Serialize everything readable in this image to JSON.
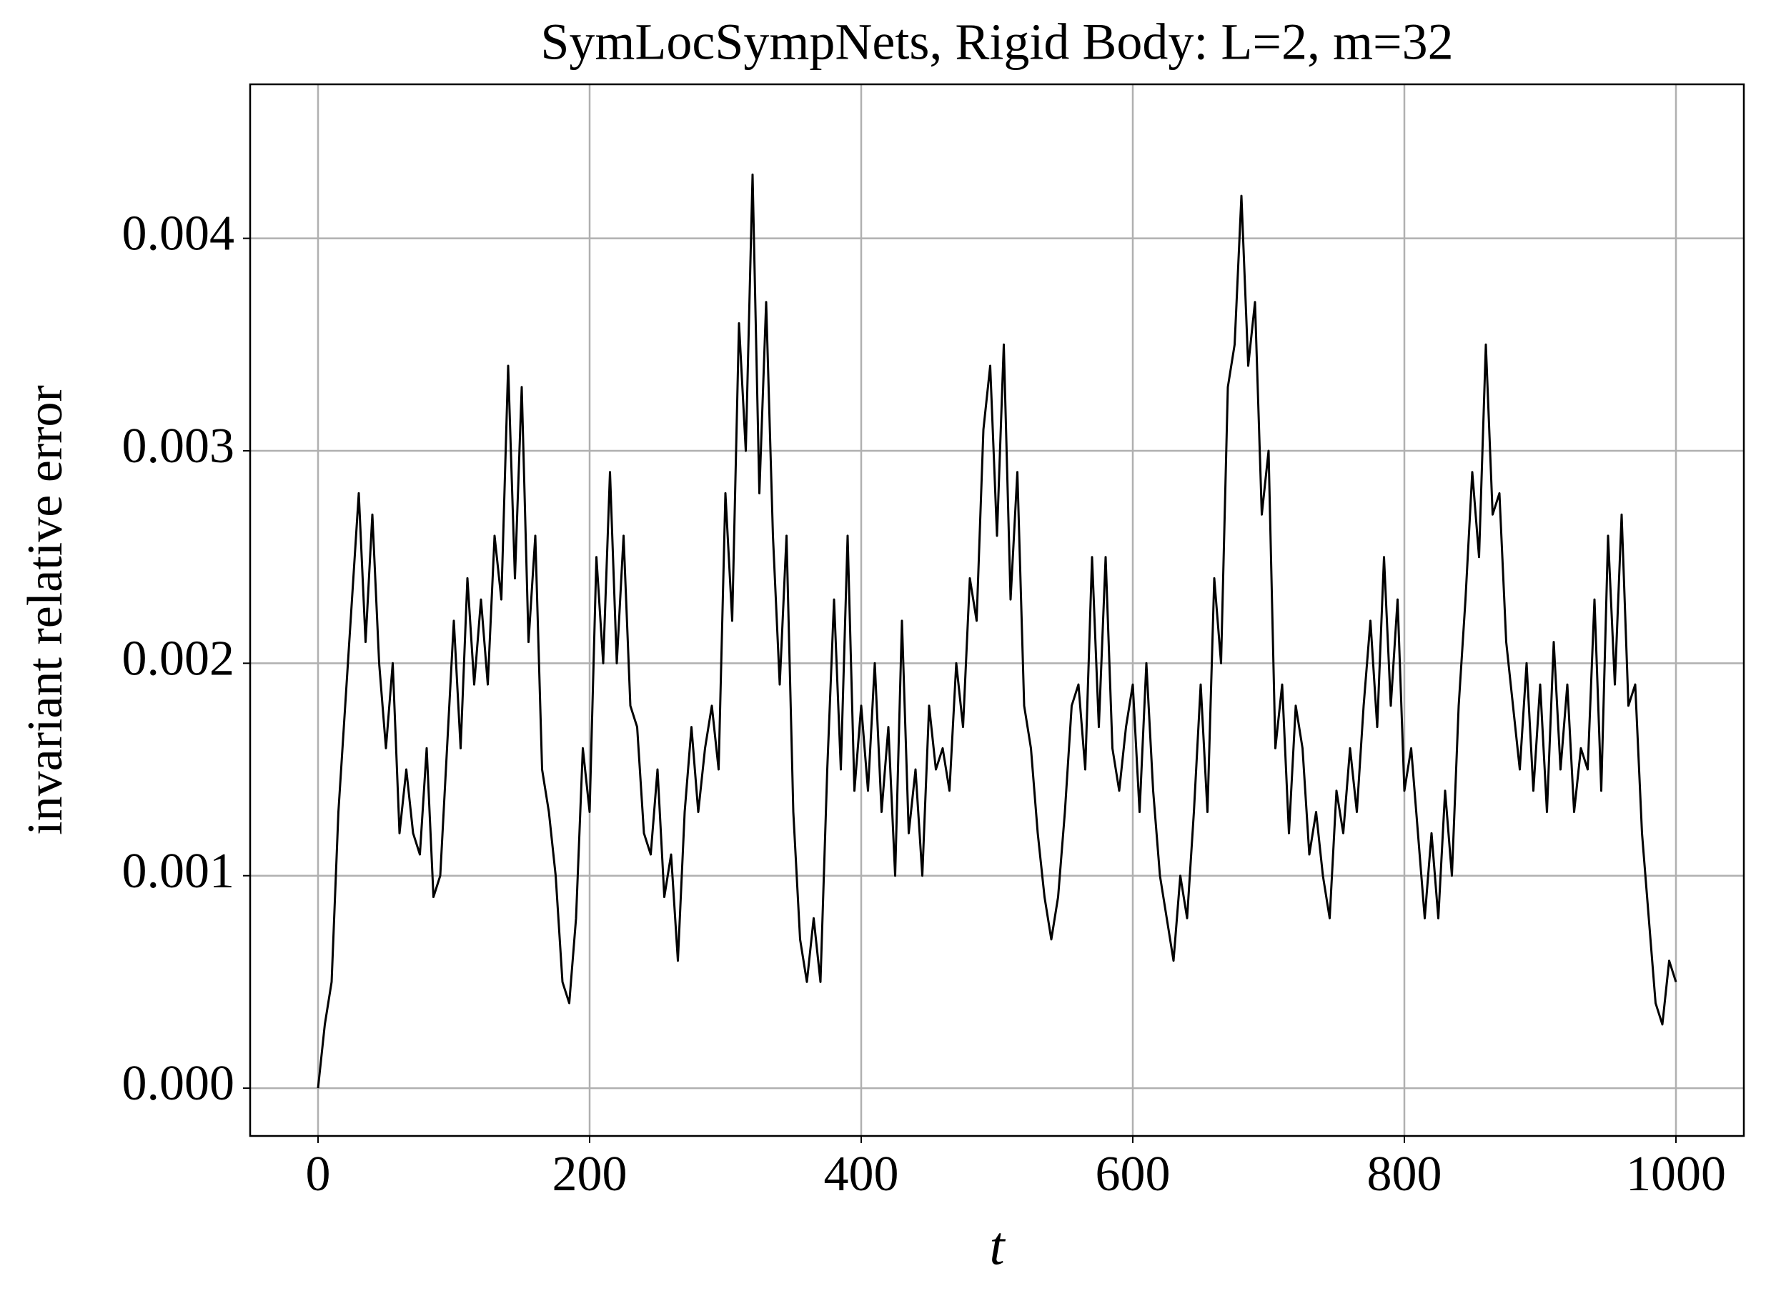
{
  "chart_data": {
    "type": "line",
    "title": "SymLocSympNets, Rigid Body: L=2, m=32",
    "xlabel": "t",
    "ylabel": "invariant relative error",
    "color": "#000000",
    "grid": true,
    "xlim": [
      -50,
      1050
    ],
    "ylim": [
      -0.000225,
      0.004725
    ],
    "xticks": [
      0,
      200,
      400,
      600,
      800,
      1000
    ],
    "yticks": [
      {
        "value": 0,
        "label": "0.000"
      },
      0.001,
      0.002,
      0.003,
      0.004
    ],
    "x": [
      0,
      5,
      10,
      15,
      20,
      25,
      30,
      35,
      40,
      45,
      50,
      55,
      60,
      65,
      70,
      75,
      80,
      85,
      90,
      95,
      100,
      105,
      110,
      115,
      120,
      125,
      130,
      135,
      140,
      145,
      150,
      155,
      160,
      165,
      170,
      175,
      180,
      185,
      190,
      195,
      200,
      205,
      210,
      215,
      220,
      225,
      230,
      235,
      240,
      245,
      250,
      255,
      260,
      265,
      270,
      275,
      280,
      285,
      290,
      295,
      300,
      305,
      310,
      315,
      320,
      325,
      330,
      335,
      340,
      345,
      350,
      355,
      360,
      365,
      370,
      375,
      380,
      385,
      390,
      395,
      400,
      405,
      410,
      415,
      420,
      425,
      430,
      435,
      440,
      445,
      450,
      455,
      460,
      465,
      470,
      475,
      480,
      485,
      490,
      495,
      500,
      505,
      510,
      515,
      520,
      525,
      530,
      535,
      540,
      545,
      550,
      555,
      560,
      565,
      570,
      575,
      580,
      585,
      590,
      595,
      600,
      605,
      610,
      615,
      620,
      625,
      630,
      635,
      640,
      645,
      650,
      655,
      660,
      665,
      670,
      675,
      680,
      685,
      690,
      695,
      700,
      705,
      710,
      715,
      720,
      725,
      730,
      735,
      740,
      745,
      750,
      755,
      760,
      765,
      770,
      775,
      780,
      785,
      790,
      795,
      800,
      805,
      810,
      815,
      820,
      825,
      830,
      835,
      840,
      845,
      850,
      855,
      860,
      865,
      870,
      875,
      880,
      885,
      890,
      895,
      900,
      905,
      910,
      915,
      920,
      925,
      930,
      935,
      940,
      945,
      950,
      955,
      960,
      965,
      970,
      975,
      980,
      985,
      990,
      995,
      1000
    ],
    "values": [
      0.0,
      0.0003,
      0.0005,
      0.0013,
      0.0018,
      0.0023,
      0.0028,
      0.0021,
      0.0027,
      0.002,
      0.0016,
      0.002,
      0.0012,
      0.0015,
      0.0012,
      0.0011,
      0.0016,
      0.0009,
      0.001,
      0.0016,
      0.0022,
      0.0016,
      0.0024,
      0.0019,
      0.0023,
      0.0019,
      0.0026,
      0.0023,
      0.0034,
      0.0024,
      0.0033,
      0.0021,
      0.0026,
      0.0015,
      0.0013,
      0.001,
      0.0005,
      0.0004,
      0.0008,
      0.0016,
      0.0013,
      0.0025,
      0.002,
      0.0029,
      0.002,
      0.0026,
      0.0018,
      0.0017,
      0.0012,
      0.0011,
      0.0015,
      0.0009,
      0.0011,
      0.0006,
      0.0013,
      0.0017,
      0.0013,
      0.0016,
      0.0018,
      0.0015,
      0.0028,
      0.0022,
      0.0036,
      0.003,
      0.0043,
      0.0028,
      0.0037,
      0.0026,
      0.0019,
      0.0026,
      0.0013,
      0.0007,
      0.0005,
      0.0008,
      0.0005,
      0.0015,
      0.0023,
      0.0015,
      0.0026,
      0.0014,
      0.0018,
      0.0014,
      0.002,
      0.0013,
      0.0017,
      0.001,
      0.0022,
      0.0012,
      0.0015,
      0.001,
      0.0018,
      0.0015,
      0.0016,
      0.0014,
      0.002,
      0.0017,
      0.0024,
      0.0022,
      0.0031,
      0.0034,
      0.0026,
      0.0035,
      0.0023,
      0.0029,
      0.0018,
      0.0016,
      0.0012,
      0.0009,
      0.0007,
      0.0009,
      0.0013,
      0.0018,
      0.0019,
      0.0015,
      0.0025,
      0.0017,
      0.0025,
      0.0016,
      0.0014,
      0.0017,
      0.0019,
      0.0013,
      0.002,
      0.0014,
      0.001,
      0.0008,
      0.0006,
      0.001,
      0.0008,
      0.0013,
      0.0019,
      0.0013,
      0.0024,
      0.002,
      0.0033,
      0.0035,
      0.0042,
      0.0034,
      0.0037,
      0.0027,
      0.003,
      0.0016,
      0.0019,
      0.0012,
      0.0018,
      0.0016,
      0.0011,
      0.0013,
      0.001,
      0.0008,
      0.0014,
      0.0012,
      0.0016,
      0.0013,
      0.0018,
      0.0022,
      0.0017,
      0.0025,
      0.0018,
      0.0023,
      0.0014,
      0.0016,
      0.0012,
      0.0008,
      0.0012,
      0.0008,
      0.0014,
      0.001,
      0.0018,
      0.0023,
      0.0029,
      0.0025,
      0.0035,
      0.0027,
      0.0028,
      0.0021,
      0.0018,
      0.0015,
      0.002,
      0.0014,
      0.0019,
      0.0013,
      0.0021,
      0.0015,
      0.0019,
      0.0013,
      0.0016,
      0.0015,
      0.0023,
      0.0014,
      0.0026,
      0.0019,
      0.0027,
      0.0018,
      0.0019,
      0.0012,
      0.0008,
      0.0004,
      0.0003,
      0.0006,
      0.0005
    ]
  }
}
